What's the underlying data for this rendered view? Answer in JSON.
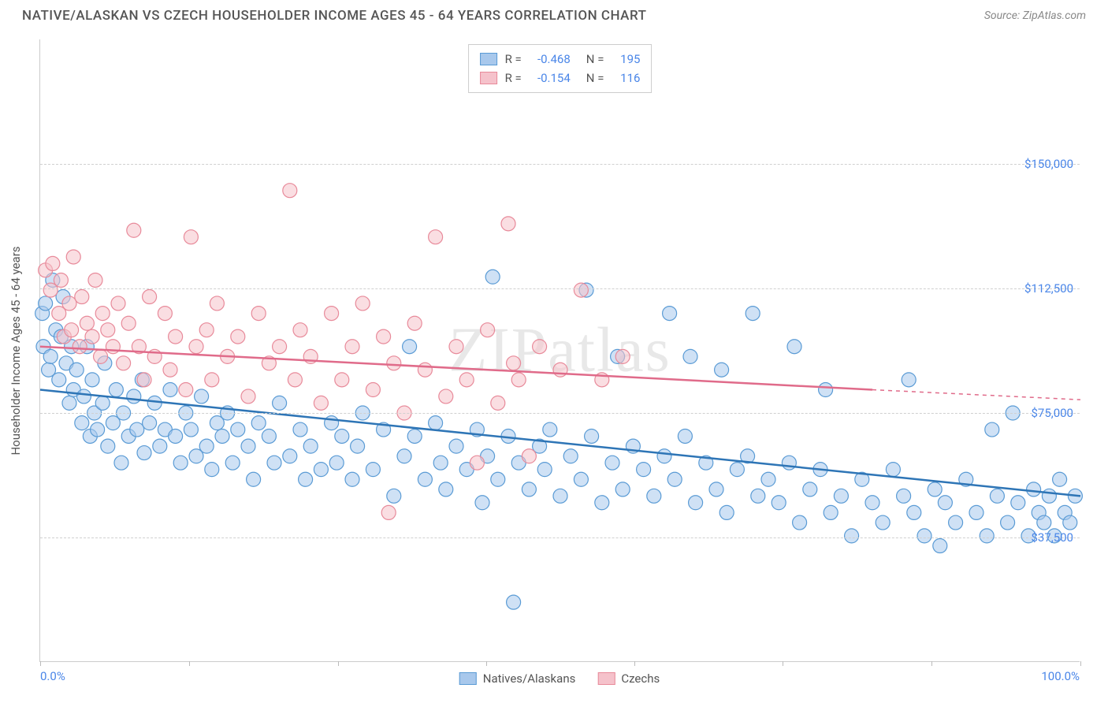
{
  "header": {
    "title": "NATIVE/ALASKAN VS CZECH HOUSEHOLDER INCOME AGES 45 - 64 YEARS CORRELATION CHART",
    "source": "Source: ZipAtlas.com"
  },
  "watermark": "ZIPatlas",
  "chart": {
    "type": "scatter",
    "ylabel": "Householder Income Ages 45 - 64 years",
    "background_color": "#ffffff",
    "grid_color": "#d0d0d0",
    "axis_color": "#cccccc",
    "tick_label_color": "#4a86e8",
    "label_fontsize": 15,
    "title_fontsize": 17,
    "xlim": [
      0,
      100
    ],
    "ylim": [
      0,
      187500
    ],
    "xtick_positions": [
      0,
      14.3,
      28.6,
      42.9,
      57.1,
      71.4,
      85.7,
      100
    ],
    "xtick_labels": {
      "0": "0.0%",
      "100": "100.0%"
    },
    "ytick_positions": [
      37500,
      75000,
      112500,
      150000
    ],
    "ytick_labels": [
      "$37,500",
      "$75,000",
      "$112,500",
      "$150,000"
    ],
    "marker_radius": 9,
    "marker_opacity": 0.55,
    "trendline_width": 2.5,
    "series": [
      {
        "key": "natives",
        "label": "Natives/Alaskans",
        "fill_color": "#a8c8ec",
        "stroke_color": "#5a9bd5",
        "line_color": "#2e75b6",
        "R": "-0.468",
        "N": "195",
        "trend": {
          "x0": 0,
          "y0": 82000,
          "x1": 100,
          "y1": 50000
        },
        "points": [
          [
            0.2,
            105000
          ],
          [
            0.3,
            95000
          ],
          [
            0.5,
            108000
          ],
          [
            0.8,
            88000
          ],
          [
            1,
            92000
          ],
          [
            1.2,
            115000
          ],
          [
            1.5,
            100000
          ],
          [
            1.8,
            85000
          ],
          [
            2,
            98000
          ],
          [
            2.2,
            110000
          ],
          [
            2.5,
            90000
          ],
          [
            2.8,
            78000
          ],
          [
            3,
            95000
          ],
          [
            3.2,
            82000
          ],
          [
            3.5,
            88000
          ],
          [
            4,
            72000
          ],
          [
            4.2,
            80000
          ],
          [
            4.5,
            95000
          ],
          [
            4.8,
            68000
          ],
          [
            5,
            85000
          ],
          [
            5.2,
            75000
          ],
          [
            5.5,
            70000
          ],
          [
            6,
            78000
          ],
          [
            6.2,
            90000
          ],
          [
            6.5,
            65000
          ],
          [
            7,
            72000
          ],
          [
            7.3,
            82000
          ],
          [
            7.8,
            60000
          ],
          [
            8,
            75000
          ],
          [
            8.5,
            68000
          ],
          [
            9,
            80000
          ],
          [
            9.3,
            70000
          ],
          [
            9.8,
            85000
          ],
          [
            10,
            63000
          ],
          [
            10.5,
            72000
          ],
          [
            11,
            78000
          ],
          [
            11.5,
            65000
          ],
          [
            12,
            70000
          ],
          [
            12.5,
            82000
          ],
          [
            13,
            68000
          ],
          [
            13.5,
            60000
          ],
          [
            14,
            75000
          ],
          [
            14.5,
            70000
          ],
          [
            15,
            62000
          ],
          [
            15.5,
            80000
          ],
          [
            16,
            65000
          ],
          [
            16.5,
            58000
          ],
          [
            17,
            72000
          ],
          [
            17.5,
            68000
          ],
          [
            18,
            75000
          ],
          [
            18.5,
            60000
          ],
          [
            19,
            70000
          ],
          [
            20,
            65000
          ],
          [
            20.5,
            55000
          ],
          [
            21,
            72000
          ],
          [
            22,
            68000
          ],
          [
            22.5,
            60000
          ],
          [
            23,
            78000
          ],
          [
            24,
            62000
          ],
          [
            25,
            70000
          ],
          [
            25.5,
            55000
          ],
          [
            26,
            65000
          ],
          [
            27,
            58000
          ],
          [
            28,
            72000
          ],
          [
            28.5,
            60000
          ],
          [
            29,
            68000
          ],
          [
            30,
            55000
          ],
          [
            30.5,
            65000
          ],
          [
            31,
            75000
          ],
          [
            32,
            58000
          ],
          [
            33,
            70000
          ],
          [
            34,
            50000
          ],
          [
            35,
            62000
          ],
          [
            35.5,
            95000
          ],
          [
            36,
            68000
          ],
          [
            37,
            55000
          ],
          [
            38,
            72000
          ],
          [
            38.5,
            60000
          ],
          [
            39,
            52000
          ],
          [
            40,
            65000
          ],
          [
            41,
            58000
          ],
          [
            42,
            70000
          ],
          [
            42.5,
            48000
          ],
          [
            43,
            62000
          ],
          [
            43.5,
            116000
          ],
          [
            44,
            55000
          ],
          [
            45,
            68000
          ],
          [
            45.5,
            18000
          ],
          [
            46,
            60000
          ],
          [
            47,
            52000
          ],
          [
            48,
            65000
          ],
          [
            48.5,
            58000
          ],
          [
            49,
            70000
          ],
          [
            50,
            50000
          ],
          [
            51,
            62000
          ],
          [
            52,
            55000
          ],
          [
            52.5,
            112000
          ],
          [
            53,
            68000
          ],
          [
            54,
            48000
          ],
          [
            55,
            60000
          ],
          [
            55.5,
            92000
          ],
          [
            56,
            52000
          ],
          [
            57,
            65000
          ],
          [
            58,
            58000
          ],
          [
            59,
            50000
          ],
          [
            60,
            62000
          ],
          [
            60.5,
            105000
          ],
          [
            61,
            55000
          ],
          [
            62,
            68000
          ],
          [
            62.5,
            92000
          ],
          [
            63,
            48000
          ],
          [
            64,
            60000
          ],
          [
            65,
            52000
          ],
          [
            65.5,
            88000
          ],
          [
            66,
            45000
          ],
          [
            67,
            58000
          ],
          [
            68,
            62000
          ],
          [
            68.5,
            105000
          ],
          [
            69,
            50000
          ],
          [
            70,
            55000
          ],
          [
            71,
            48000
          ],
          [
            72,
            60000
          ],
          [
            72.5,
            95000
          ],
          [
            73,
            42000
          ],
          [
            74,
            52000
          ],
          [
            75,
            58000
          ],
          [
            75.5,
            82000
          ],
          [
            76,
            45000
          ],
          [
            77,
            50000
          ],
          [
            78,
            38000
          ],
          [
            79,
            55000
          ],
          [
            80,
            48000
          ],
          [
            81,
            42000
          ],
          [
            82,
            58000
          ],
          [
            83,
            50000
          ],
          [
            83.5,
            85000
          ],
          [
            84,
            45000
          ],
          [
            85,
            38000
          ],
          [
            86,
            52000
          ],
          [
            86.5,
            35000
          ],
          [
            87,
            48000
          ],
          [
            88,
            42000
          ],
          [
            89,
            55000
          ],
          [
            90,
            45000
          ],
          [
            91,
            38000
          ],
          [
            91.5,
            70000
          ],
          [
            92,
            50000
          ],
          [
            93,
            42000
          ],
          [
            93.5,
            75000
          ],
          [
            94,
            48000
          ],
          [
            95,
            38000
          ],
          [
            95.5,
            52000
          ],
          [
            96,
            45000
          ],
          [
            96.5,
            42000
          ],
          [
            97,
            50000
          ],
          [
            97.5,
            38000
          ],
          [
            98,
            55000
          ],
          [
            98.5,
            45000
          ],
          [
            99,
            42000
          ],
          [
            99.5,
            50000
          ]
        ]
      },
      {
        "key": "czechs",
        "label": "Czechs",
        "fill_color": "#f5c2cb",
        "stroke_color": "#e88a9a",
        "line_color": "#e06b8a",
        "R": "-0.154",
        "N": "116",
        "trend": {
          "x0": 0,
          "y0": 95000,
          "x1": 80,
          "y1": 82000,
          "x2": 100,
          "y2": 79000
        },
        "points": [
          [
            0.5,
            118000
          ],
          [
            1,
            112000
          ],
          [
            1.2,
            120000
          ],
          [
            1.8,
            105000
          ],
          [
            2,
            115000
          ],
          [
            2.3,
            98000
          ],
          [
            2.8,
            108000
          ],
          [
            3,
            100000
          ],
          [
            3.2,
            122000
          ],
          [
            3.8,
            95000
          ],
          [
            4,
            110000
          ],
          [
            4.5,
            102000
          ],
          [
            5,
            98000
          ],
          [
            5.3,
            115000
          ],
          [
            5.8,
            92000
          ],
          [
            6,
            105000
          ],
          [
            6.5,
            100000
          ],
          [
            7,
            95000
          ],
          [
            7.5,
            108000
          ],
          [
            8,
            90000
          ],
          [
            8.5,
            102000
          ],
          [
            9,
            130000
          ],
          [
            9.5,
            95000
          ],
          [
            10,
            85000
          ],
          [
            10.5,
            110000
          ],
          [
            11,
            92000
          ],
          [
            12,
            105000
          ],
          [
            12.5,
            88000
          ],
          [
            13,
            98000
          ],
          [
            14,
            82000
          ],
          [
            14.5,
            128000
          ],
          [
            15,
            95000
          ],
          [
            16,
            100000
          ],
          [
            16.5,
            85000
          ],
          [
            17,
            108000
          ],
          [
            18,
            92000
          ],
          [
            19,
            98000
          ],
          [
            20,
            80000
          ],
          [
            21,
            105000
          ],
          [
            22,
            90000
          ],
          [
            23,
            95000
          ],
          [
            24,
            142000
          ],
          [
            24.5,
            85000
          ],
          [
            25,
            100000
          ],
          [
            26,
            92000
          ],
          [
            27,
            78000
          ],
          [
            28,
            105000
          ],
          [
            29,
            85000
          ],
          [
            30,
            95000
          ],
          [
            31,
            108000
          ],
          [
            32,
            82000
          ],
          [
            33,
            98000
          ],
          [
            33.5,
            45000
          ],
          [
            34,
            90000
          ],
          [
            35,
            75000
          ],
          [
            36,
            102000
          ],
          [
            37,
            88000
          ],
          [
            38,
            128000
          ],
          [
            39,
            80000
          ],
          [
            40,
            95000
          ],
          [
            41,
            85000
          ],
          [
            42,
            60000
          ],
          [
            43,
            100000
          ],
          [
            44,
            78000
          ],
          [
            45,
            132000
          ],
          [
            45.5,
            90000
          ],
          [
            46,
            85000
          ],
          [
            47,
            62000
          ],
          [
            48,
            95000
          ],
          [
            50,
            88000
          ],
          [
            52,
            112000
          ],
          [
            54,
            85000
          ],
          [
            56,
            92000
          ]
        ]
      }
    ]
  }
}
